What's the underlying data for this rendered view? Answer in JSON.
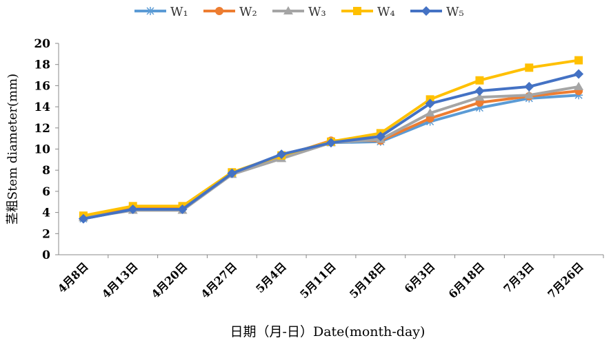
{
  "chart_data": {
    "type": "line",
    "title": "",
    "xlabel": "日期（月-日）Date(month-day)",
    "ylabel": "茎粗Stem diameter(mm)",
    "ylim": [
      0,
      20
    ],
    "yticks": [
      0,
      2,
      4,
      6,
      8,
      10,
      12,
      14,
      16,
      18,
      20
    ],
    "categories": [
      "4月8日",
      "4月13日",
      "4月20日",
      "4月27日",
      "5月4日",
      "5月11日",
      "5月18日",
      "6月3日",
      "6月18日",
      "7月3日",
      "7月26日"
    ],
    "legend_position": "top",
    "series": [
      {
        "name": "W₁",
        "color": "#5B9BD5",
        "marker": "asterisk",
        "values": [
          3.4,
          4.3,
          4.3,
          7.7,
          9.3,
          10.6,
          10.7,
          12.6,
          13.9,
          14.8,
          15.1
        ]
      },
      {
        "name": "W₂",
        "color": "#ED7D31",
        "marker": "circle",
        "values": [
          3.6,
          4.5,
          4.5,
          7.7,
          9.3,
          10.8,
          10.8,
          12.9,
          14.4,
          15.0,
          15.5
        ]
      },
      {
        "name": "W₃",
        "color": "#A5A5A5",
        "marker": "triangle",
        "values": [
          3.5,
          4.2,
          4.2,
          7.6,
          9.1,
          10.6,
          10.9,
          13.4,
          14.9,
          15.1,
          15.9
        ]
      },
      {
        "name": "W₄",
        "color": "#FFC000",
        "marker": "square",
        "values": [
          3.7,
          4.6,
          4.6,
          7.8,
          9.4,
          10.7,
          11.5,
          14.7,
          16.5,
          17.7,
          18.4
        ]
      },
      {
        "name": "W₅",
        "color": "#4472C4",
        "marker": "diamond",
        "values": [
          3.4,
          4.3,
          4.3,
          7.7,
          9.5,
          10.6,
          11.2,
          14.3,
          15.5,
          15.9,
          17.1
        ]
      }
    ]
  }
}
